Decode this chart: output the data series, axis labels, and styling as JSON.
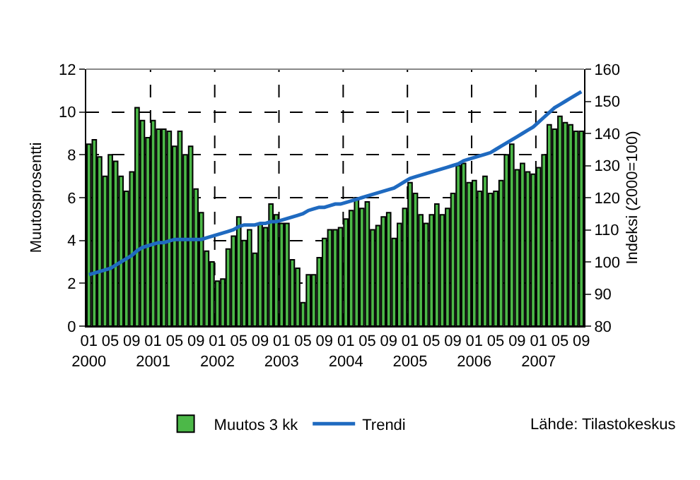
{
  "chart_data": {
    "type": "bar",
    "ylabel": "Muutosprosentti",
    "y2label": "Indeksi (2000=100)",
    "categories": [
      "01\n2000",
      null,
      null,
      null,
      "05",
      null,
      null,
      null,
      "09",
      null,
      null,
      null,
      "01\n2001",
      null,
      null,
      null,
      "05",
      null,
      null,
      null,
      "09",
      null,
      null,
      null,
      "01\n2002",
      null,
      null,
      null,
      "05",
      null,
      null,
      null,
      "09",
      null,
      null,
      null,
      "01\n2003",
      null,
      null,
      null,
      "05",
      null,
      null,
      null,
      "09",
      null,
      null,
      null,
      "01\n2004",
      null,
      null,
      null,
      "05",
      null,
      null,
      null,
      "09",
      null,
      null,
      null,
      "01\n2005",
      null,
      null,
      null,
      "05",
      null,
      null,
      null,
      "09",
      null,
      null,
      null,
      "01\n2006",
      null,
      null,
      null,
      "05",
      null,
      null,
      null,
      "09",
      null,
      null,
      null,
      "01\n2007",
      null,
      null,
      null,
      "05",
      null,
      null,
      null,
      "09"
    ],
    "series": [
      {
        "name": "Muutos 3 kk",
        "color": "#4cb848",
        "values": [
          8.5,
          8.7,
          7.9,
          7.0,
          8.0,
          7.7,
          7.0,
          6.3,
          7.2,
          10.2,
          9.6,
          8.8,
          9.6,
          9.2,
          9.2,
          9.1,
          8.4,
          9.1,
          8.0,
          8.4,
          6.4,
          5.3,
          3.5,
          3.0,
          2.1,
          2.2,
          3.6,
          4.2,
          5.1,
          4.0,
          4.5,
          3.4,
          4.8,
          4.6,
          5.7,
          5.2,
          4.8,
          4.8,
          3.1,
          2.7,
          1.1,
          2.4,
          2.4,
          3.2,
          4.1,
          4.5,
          4.5,
          4.6,
          5.0,
          5.4,
          6.0,
          5.5,
          5.8,
          4.5,
          4.7,
          5.1,
          5.3,
          4.1,
          4.8,
          5.5,
          6.7,
          6.2,
          5.2,
          4.8,
          5.2,
          5.7,
          5.2,
          5.5,
          6.2,
          7.5,
          7.6,
          6.7,
          6.8,
          6.3,
          7.0,
          6.2,
          6.3,
          6.8,
          8.0,
          8.5,
          7.3,
          7.6,
          7.2,
          7.1,
          7.4,
          8.0,
          9.4,
          9.2,
          9.8,
          9.5,
          9.4,
          9.1,
          9.1
        ]
      },
      {
        "name": "Trendi",
        "type": "line",
        "axis": "y2",
        "color": "#1f6ac0",
        "values": [
          96,
          96.5,
          97,
          97.5,
          98,
          99,
          100,
          101,
          102,
          103.5,
          104.5,
          105,
          105.5,
          106,
          106,
          106.5,
          107,
          107,
          107,
          107,
          107,
          107,
          107.5,
          108,
          108.5,
          109,
          109.5,
          110,
          111,
          111.5,
          111.5,
          111.5,
          112,
          112,
          112.5,
          112.5,
          113,
          113.5,
          114,
          114.5,
          115,
          116,
          116.5,
          117,
          117,
          117.5,
          118,
          118,
          118.5,
          119,
          119.5,
          120,
          120.5,
          121,
          121.5,
          122,
          122.5,
          123,
          124,
          125,
          126,
          126.5,
          127,
          127.5,
          128,
          128.5,
          129,
          129.5,
          130,
          130.5,
          131.5,
          132,
          132.5,
          133,
          133.5,
          134,
          135,
          136,
          137,
          138,
          139,
          140,
          141,
          142,
          143.5,
          145,
          146.5,
          148,
          149,
          150,
          151,
          152,
          153
        ]
      }
    ],
    "ylim": [
      0,
      12
    ],
    "yticks": [
      0,
      2,
      4,
      6,
      8,
      10,
      12
    ],
    "y2lim": [
      80,
      160
    ],
    "y2ticks": [
      80,
      90,
      100,
      110,
      120,
      130,
      140,
      150,
      160
    ],
    "grid": true,
    "legend": "bottom",
    "annotations": [
      "Lähde: Tilastokeskus"
    ]
  }
}
